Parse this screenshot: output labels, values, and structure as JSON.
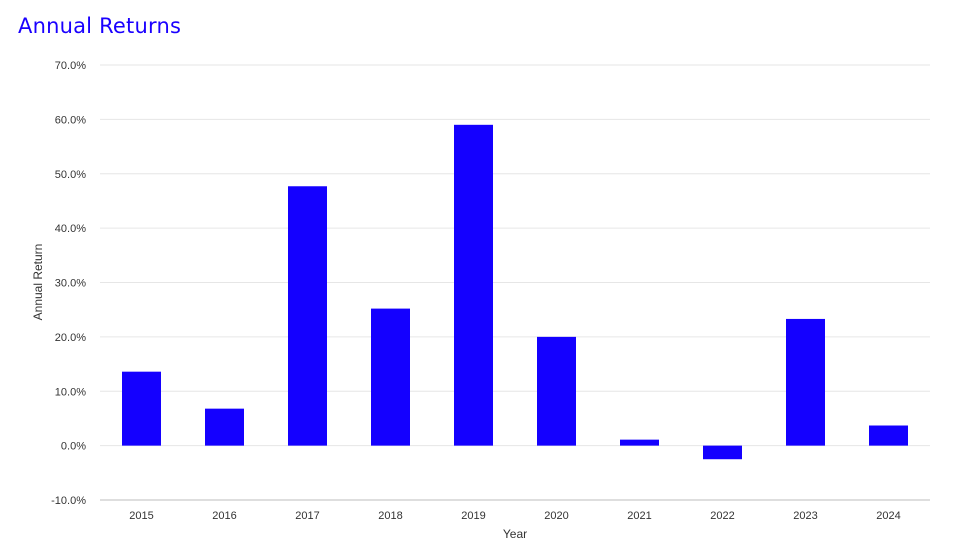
{
  "chart_data": {
    "type": "bar",
    "title": "Annual Returns",
    "xlabel": "Year",
    "ylabel": "Annual Return",
    "categories": [
      "2015",
      "2016",
      "2017",
      "2018",
      "2019",
      "2020",
      "2021",
      "2022",
      "2023",
      "2024"
    ],
    "series": [
      {
        "values": [
          13.6,
          6.8,
          47.7,
          25.2,
          59.0,
          20.0,
          1.1,
          -2.5,
          23.3,
          3.7
        ]
      }
    ],
    "ylim": [
      -10,
      70
    ],
    "yticks": [
      "-10.0%",
      "0.0%",
      "10.0%",
      "20.0%",
      "30.0%",
      "40.0%",
      "50.0%",
      "60.0%",
      "70.0%"
    ],
    "ytick_values": [
      -10,
      0,
      10,
      20,
      30,
      40,
      50,
      60,
      70
    ],
    "grid": true,
    "bar_color": "#1400ff",
    "grid_color": "#e6e6e6",
    "title_color": "#1a00ff"
  }
}
